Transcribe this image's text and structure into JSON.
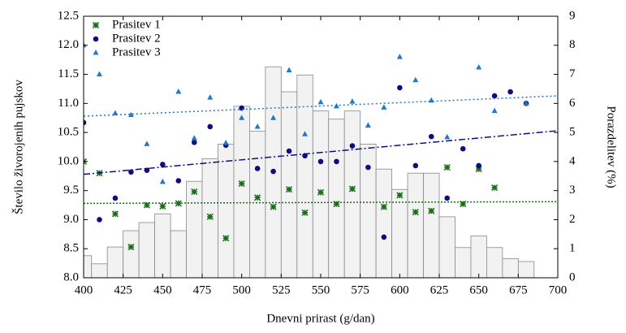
{
  "chart_data": {
    "type": "scatter",
    "x_label": "Dnevni prirast (g/dan)",
    "y_label": "Število živorojenih pujskov",
    "y2_label": "Porazdelitev (%)",
    "xlim": [
      400,
      700
    ],
    "xticks": [
      400,
      425,
      450,
      475,
      500,
      525,
      550,
      575,
      600,
      625,
      650,
      675,
      700
    ],
    "ylim": [
      8,
      12.5
    ],
    "yticks": [
      {
        "value": 8,
        "label": "8.0"
      },
      8.5,
      {
        "value": 9,
        "label": "9.0"
      },
      9.5,
      {
        "value": 10,
        "label": "10.0"
      },
      10.5,
      {
        "value": 11,
        "label": "11.0"
      },
      11.5,
      {
        "value": 12,
        "label": "12.0"
      },
      12.5
    ],
    "y2lim": [
      0,
      9
    ],
    "y2ticks": [
      0,
      1,
      2,
      3,
      4,
      5,
      6,
      7,
      8,
      9
    ],
    "legend": "top-left",
    "histogram": {
      "color": "#f2f2f2",
      "edge": "#888888",
      "axis": "y2",
      "bins": [
        395,
        405,
        415,
        425,
        435,
        445,
        455,
        465,
        475,
        485,
        495,
        505,
        515,
        525,
        535,
        545,
        555,
        565,
        575,
        585,
        595,
        605,
        615,
        625,
        635,
        645,
        655,
        665,
        675,
        685
      ],
      "values": [
        0.76,
        0.48,
        1.06,
        1.62,
        1.9,
        2.2,
        1.62,
        3.32,
        4.1,
        4.6,
        5.9,
        5.04,
        7.26,
        6.4,
        6.98,
        5.74,
        5.46,
        5.74,
        4.6,
        3.74,
        3.04,
        3.6,
        3.6,
        2.1,
        1.04,
        1.44,
        1.04,
        0.66,
        0.56
      ]
    },
    "series": [
      {
        "name": "Prasitev 1",
        "color": "#1a6e1a",
        "marker": "asterisk",
        "trend": [
          9.28,
          9.31
        ],
        "x": [
          400,
          410,
          420,
          430,
          440,
          450,
          460,
          470,
          480,
          490,
          500,
          510,
          520,
          530,
          540,
          550,
          560,
          570,
          590,
          600,
          610,
          620,
          630,
          640,
          650,
          660
        ],
        "values": [
          10.0,
          9.8,
          9.1,
          8.53,
          9.25,
          9.23,
          9.28,
          9.48,
          9.05,
          8.68,
          9.62,
          9.38,
          9.22,
          9.52,
          9.12,
          9.47,
          9.27,
          9.53,
          9.22,
          9.42,
          9.13,
          9.15,
          9.9,
          9.27,
          9.87,
          9.55
        ]
      },
      {
        "name": "Prasitev 2",
        "color": "#0d0d80",
        "marker": "circle",
        "trend": [
          9.78,
          10.53
        ],
        "x": [
          400,
          410,
          420,
          430,
          440,
          450,
          460,
          470,
          480,
          490,
          500,
          510,
          520,
          530,
          540,
          550,
          560,
          570,
          580,
          590,
          600,
          610,
          620,
          630,
          640,
          650,
          660,
          670,
          680
        ],
        "values": [
          10.67,
          9.0,
          9.37,
          9.82,
          9.85,
          9.95,
          9.67,
          10.33,
          10.6,
          10.28,
          10.92,
          9.88,
          9.83,
          10.18,
          10.1,
          10.0,
          10.0,
          10.27,
          9.9,
          8.7,
          11.27,
          9.93,
          10.43,
          9.37,
          10.22,
          9.93,
          11.13,
          11.2,
          11.0
        ]
      },
      {
        "name": "Prasitev 3",
        "color": "#1f78c8",
        "marker": "triangle",
        "trend": [
          10.78,
          11.13
        ],
        "x": [
          400,
          410,
          420,
          430,
          440,
          450,
          460,
          470,
          480,
          490,
          500,
          510,
          520,
          530,
          540,
          550,
          560,
          570,
          580,
          590,
          600,
          610,
          620,
          630,
          650,
          660,
          680
        ],
        "values": [
          12.0,
          11.5,
          10.83,
          10.8,
          10.3,
          9.65,
          11.2,
          10.4,
          11.1,
          10.32,
          10.75,
          10.6,
          10.75,
          11.57,
          10.47,
          11.02,
          10.95,
          11.03,
          10.62,
          10.93,
          11.8,
          11.4,
          11.05,
          10.42,
          11.62,
          10.87,
          11.0
        ]
      }
    ]
  }
}
